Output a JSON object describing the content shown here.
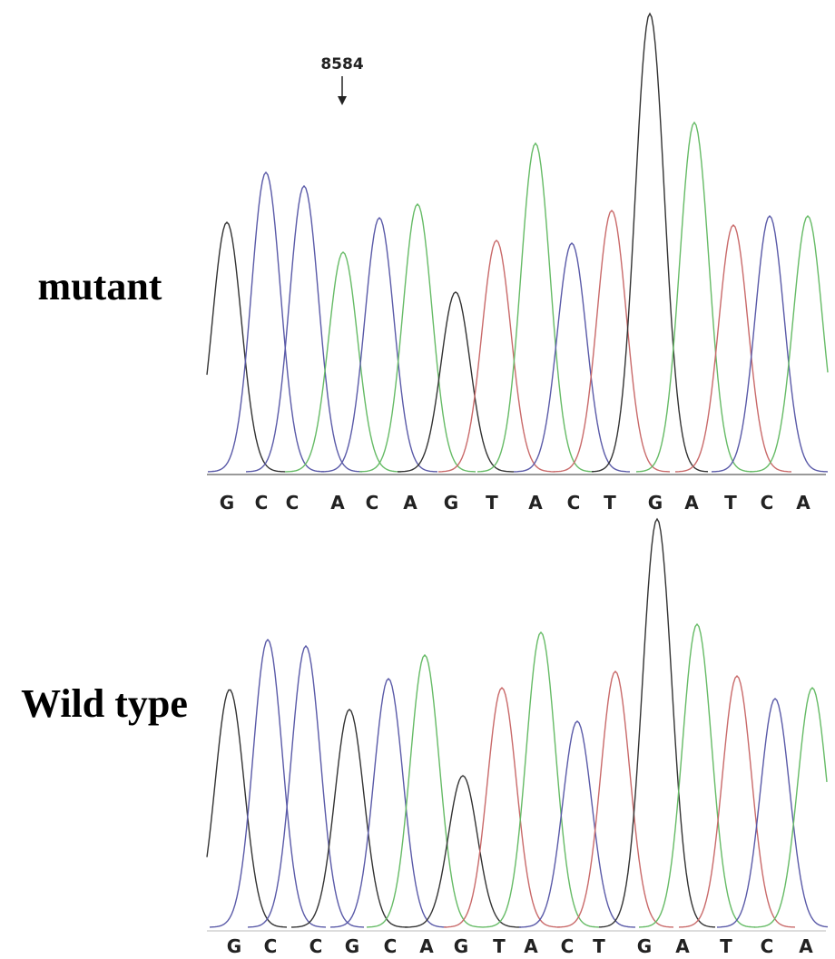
{
  "labels": {
    "mutant": "mutant",
    "wild_type": "Wild type"
  },
  "marker": "8584",
  "mutant_sequence": [
    "G",
    "C",
    "C",
    "A",
    "C",
    "A",
    "G",
    "T",
    "A",
    "C",
    "T",
    "G",
    "A",
    "T",
    "C",
    "A"
  ],
  "wild_type_sequence": [
    "G",
    "C",
    "C",
    "G",
    "C",
    "A",
    "G",
    "T",
    "A",
    "C",
    "T",
    "G",
    "A",
    "T",
    "C",
    "A"
  ]
}
